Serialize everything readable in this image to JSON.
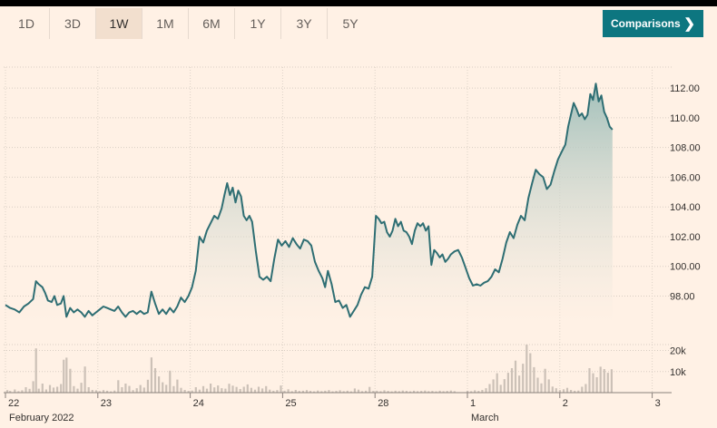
{
  "toolbar": {
    "ranges": [
      "1D",
      "3D",
      "1W",
      "1M",
      "6M",
      "1Y",
      "3Y",
      "5Y"
    ],
    "active_range": "1W",
    "comparisons_label": "Comparisons",
    "comparisons_icon": "chevron-right-icon"
  },
  "colors": {
    "background": "#fff1e5",
    "line": "#2e6e73",
    "area_top": "#9dbdb8",
    "volume": "#ccc1b7",
    "button": "#0d7680"
  },
  "chart_data": {
    "type": "area",
    "price": {
      "y_ticks": [
        "98.00",
        "100.00",
        "102.00",
        "104.00",
        "106.00",
        "108.00",
        "110.00",
        "112.00"
      ],
      "ylim": [
        96.2,
        112.8
      ],
      "points": [
        [
          0.0,
          97.4
        ],
        [
          0.05,
          97.2
        ],
        [
          0.1,
          97.1
        ],
        [
          0.15,
          96.9
        ],
        [
          0.2,
          97.3
        ],
        [
          0.25,
          97.5
        ],
        [
          0.3,
          97.8
        ],
        [
          0.33,
          99.0
        ],
        [
          0.36,
          98.8
        ],
        [
          0.4,
          98.6
        ],
        [
          0.43,
          98.2
        ],
        [
          0.46,
          97.7
        ],
        [
          0.5,
          97.6
        ],
        [
          0.53,
          98.0
        ],
        [
          0.56,
          97.4
        ],
        [
          0.6,
          97.5
        ],
        [
          0.63,
          98.0
        ],
        [
          0.66,
          96.6
        ],
        [
          0.7,
          97.2
        ],
        [
          0.74,
          96.9
        ],
        [
          0.78,
          97.1
        ],
        [
          0.82,
          96.9
        ],
        [
          0.86,
          96.6
        ],
        [
          0.9,
          97.0
        ],
        [
          0.94,
          96.7
        ],
        [
          0.98,
          96.9
        ],
        [
          1.02,
          97.1
        ],
        [
          1.06,
          97.3
        ],
        [
          1.1,
          97.2
        ],
        [
          1.14,
          97.1
        ],
        [
          1.18,
          97.0
        ],
        [
          1.22,
          97.3
        ],
        [
          1.26,
          96.9
        ],
        [
          1.3,
          96.6
        ],
        [
          1.34,
          96.9
        ],
        [
          1.38,
          97.0
        ],
        [
          1.42,
          96.8
        ],
        [
          1.46,
          97.0
        ],
        [
          1.5,
          96.8
        ],
        [
          1.54,
          96.9
        ],
        [
          1.58,
          98.3
        ],
        [
          1.62,
          97.5
        ],
        [
          1.66,
          96.8
        ],
        [
          1.7,
          97.1
        ],
        [
          1.74,
          96.8
        ],
        [
          1.78,
          97.2
        ],
        [
          1.82,
          96.9
        ],
        [
          1.86,
          97.3
        ],
        [
          1.9,
          97.9
        ],
        [
          1.94,
          97.6
        ],
        [
          1.98,
          98.0
        ],
        [
          2.02,
          98.6
        ],
        [
          2.06,
          99.7
        ],
        [
          2.1,
          102.0
        ],
        [
          2.14,
          101.6
        ],
        [
          2.18,
          102.4
        ],
        [
          2.22,
          102.9
        ],
        [
          2.26,
          103.4
        ],
        [
          2.3,
          103.2
        ],
        [
          2.34,
          103.9
        ],
        [
          2.37,
          104.8
        ],
        [
          2.4,
          105.6
        ],
        [
          2.43,
          104.8
        ],
        [
          2.46,
          105.3
        ],
        [
          2.49,
          104.3
        ],
        [
          2.52,
          105.1
        ],
        [
          2.55,
          104.7
        ],
        [
          2.58,
          103.4
        ],
        [
          2.61,
          103.1
        ],
        [
          2.64,
          103.4
        ],
        [
          2.67,
          103.0
        ],
        [
          2.71,
          101.0
        ],
        [
          2.75,
          99.3
        ],
        [
          2.79,
          99.1
        ],
        [
          2.83,
          99.3
        ],
        [
          2.87,
          99.0
        ],
        [
          2.91,
          100.5
        ],
        [
          2.95,
          101.8
        ],
        [
          2.99,
          101.4
        ],
        [
          3.03,
          101.7
        ],
        [
          3.07,
          101.3
        ],
        [
          3.11,
          101.9
        ],
        [
          3.15,
          101.5
        ],
        [
          3.19,
          101.2
        ],
        [
          3.23,
          101.8
        ],
        [
          3.27,
          101.7
        ],
        [
          3.31,
          101.4
        ],
        [
          3.35,
          100.3
        ],
        [
          3.39,
          99.7
        ],
        [
          3.43,
          99.2
        ],
        [
          3.46,
          98.6
        ],
        [
          3.49,
          99.7
        ],
        [
          3.53,
          98.8
        ],
        [
          3.57,
          97.6
        ],
        [
          3.61,
          97.7
        ],
        [
          3.65,
          97.2
        ],
        [
          3.69,
          97.4
        ],
        [
          3.73,
          96.6
        ],
        [
          3.77,
          97.0
        ],
        [
          3.81,
          97.4
        ],
        [
          3.85,
          98.1
        ],
        [
          3.89,
          98.6
        ],
        [
          3.93,
          98.5
        ],
        [
          3.97,
          99.3
        ],
        [
          4.01,
          103.4
        ],
        [
          4.04,
          103.2
        ],
        [
          4.07,
          102.9
        ],
        [
          4.1,
          103.0
        ],
        [
          4.13,
          102.3
        ],
        [
          4.16,
          102.0
        ],
        [
          4.19,
          102.4
        ],
        [
          4.22,
          103.2
        ],
        [
          4.25,
          102.7
        ],
        [
          4.28,
          103.0
        ],
        [
          4.31,
          102.4
        ],
        [
          4.34,
          102.3
        ],
        [
          4.37,
          102.0
        ],
        [
          4.4,
          101.5
        ],
        [
          4.43,
          102.4
        ],
        [
          4.46,
          102.9
        ],
        [
          4.49,
          102.7
        ],
        [
          4.52,
          102.9
        ],
        [
          4.55,
          102.4
        ],
        [
          4.58,
          102.7
        ],
        [
          4.61,
          100.1
        ],
        [
          4.64,
          101.1
        ],
        [
          4.67,
          100.9
        ],
        [
          4.7,
          100.6
        ],
        [
          4.73,
          100.8
        ],
        [
          4.76,
          100.3
        ],
        [
          4.79,
          100.5
        ],
        [
          4.82,
          100.8
        ],
        [
          4.86,
          101.0
        ],
        [
          4.9,
          101.1
        ],
        [
          4.94,
          100.6
        ],
        [
          4.98,
          99.9
        ],
        [
          5.02,
          99.2
        ],
        [
          5.06,
          98.7
        ],
        [
          5.1,
          98.8
        ],
        [
          5.14,
          98.7
        ],
        [
          5.18,
          98.9
        ],
        [
          5.22,
          99.0
        ],
        [
          5.26,
          99.3
        ],
        [
          5.3,
          99.8
        ],
        [
          5.34,
          99.6
        ],
        [
          5.38,
          100.5
        ],
        [
          5.42,
          101.6
        ],
        [
          5.46,
          102.3
        ],
        [
          5.5,
          101.9
        ],
        [
          5.54,
          102.8
        ],
        [
          5.58,
          103.4
        ],
        [
          5.62,
          103.1
        ],
        [
          5.66,
          104.6
        ],
        [
          5.7,
          105.6
        ],
        [
          5.74,
          106.5
        ],
        [
          5.78,
          106.2
        ],
        [
          5.82,
          106.0
        ],
        [
          5.86,
          105.2
        ],
        [
          5.9,
          105.5
        ],
        [
          5.94,
          106.4
        ],
        [
          5.98,
          107.2
        ],
        [
          6.02,
          107.7
        ],
        [
          6.06,
          108.2
        ],
        [
          6.09,
          109.4
        ],
        [
          6.12,
          110.2
        ],
        [
          6.15,
          111.0
        ],
        [
          6.18,
          110.6
        ],
        [
          6.21,
          110.1
        ],
        [
          6.24,
          110.3
        ],
        [
          6.27,
          109.9
        ],
        [
          6.3,
          110.2
        ],
        [
          6.33,
          111.6
        ],
        [
          6.36,
          111.2
        ],
        [
          6.39,
          112.3
        ],
        [
          6.42,
          111.1
        ],
        [
          6.45,
          111.5
        ],
        [
          6.48,
          110.4
        ],
        [
          6.51,
          110.0
        ],
        [
          6.54,
          109.4
        ],
        [
          6.57,
          109.2
        ]
      ]
    },
    "volume": {
      "y_ticks": [
        "10k",
        "20k"
      ],
      "ylim": [
        0,
        25000
      ],
      "bars": [
        [
          0.02,
          1200
        ],
        [
          0.05,
          800
        ],
        [
          0.1,
          1500
        ],
        [
          0.14,
          700
        ],
        [
          0.18,
          1100
        ],
        [
          0.22,
          2600
        ],
        [
          0.26,
          1800
        ],
        [
          0.3,
          5400
        ],
        [
          0.33,
          21000
        ],
        [
          0.36,
          1900
        ],
        [
          0.4,
          4300
        ],
        [
          0.44,
          1500
        ],
        [
          0.48,
          3600
        ],
        [
          0.52,
          2400
        ],
        [
          0.56,
          2800
        ],
        [
          0.6,
          4100
        ],
        [
          0.63,
          15600
        ],
        [
          0.66,
          16600
        ],
        [
          0.7,
          11300
        ],
        [
          0.74,
          3100
        ],
        [
          0.78,
          1900
        ],
        [
          0.82,
          4700
        ],
        [
          0.86,
          12400
        ],
        [
          0.9,
          2600
        ],
        [
          0.94,
          1300
        ],
        [
          0.98,
          1100
        ],
        [
          1.02,
          700
        ],
        [
          1.06,
          1200
        ],
        [
          1.1,
          900
        ],
        [
          1.14,
          600
        ],
        [
          1.18,
          1000
        ],
        [
          1.22,
          5900
        ],
        [
          1.26,
          2600
        ],
        [
          1.3,
          4300
        ],
        [
          1.34,
          3200
        ],
        [
          1.38,
          1200
        ],
        [
          1.42,
          2100
        ],
        [
          1.46,
          3600
        ],
        [
          1.5,
          2400
        ],
        [
          1.54,
          6100
        ],
        [
          1.58,
          16700
        ],
        [
          1.62,
          11600
        ],
        [
          1.66,
          7700
        ],
        [
          1.7,
          4900
        ],
        [
          1.74,
          3700
        ],
        [
          1.78,
          10400
        ],
        [
          1.82,
          3100
        ],
        [
          1.86,
          6200
        ],
        [
          1.9,
          2300
        ],
        [
          1.94,
          1300
        ],
        [
          1.98,
          800
        ],
        [
          2.02,
          1000
        ],
        [
          2.06,
          2600
        ],
        [
          2.1,
          1400
        ],
        [
          2.14,
          3100
        ],
        [
          2.18,
          1900
        ],
        [
          2.22,
          4300
        ],
        [
          2.26,
          2500
        ],
        [
          2.3,
          3400
        ],
        [
          2.34,
          2100
        ],
        [
          2.38,
          1900
        ],
        [
          2.42,
          4200
        ],
        [
          2.46,
          3300
        ],
        [
          2.5,
          2700
        ],
        [
          2.54,
          1700
        ],
        [
          2.58,
          2800
        ],
        [
          2.62,
          3900
        ],
        [
          2.66,
          2300
        ],
        [
          2.7,
          1400
        ],
        [
          2.74,
          2800
        ],
        [
          2.78,
          2000
        ],
        [
          2.82,
          3100
        ],
        [
          2.86,
          1400
        ],
        [
          2.9,
          900
        ],
        [
          2.94,
          1200
        ],
        [
          2.98,
          3400
        ],
        [
          3.02,
          900
        ],
        [
          3.06,
          1600
        ],
        [
          3.1,
          700
        ],
        [
          3.14,
          1300
        ],
        [
          3.18,
          800
        ],
        [
          3.22,
          900
        ],
        [
          3.26,
          1200
        ],
        [
          3.3,
          800
        ],
        [
          3.34,
          600
        ],
        [
          3.38,
          1000
        ],
        [
          3.42,
          700
        ],
        [
          3.46,
          900
        ],
        [
          3.5,
          1200
        ],
        [
          3.54,
          600
        ],
        [
          3.58,
          800
        ],
        [
          3.62,
          1100
        ],
        [
          3.66,
          700
        ],
        [
          3.7,
          900
        ],
        [
          3.74,
          600
        ],
        [
          3.78,
          2000
        ],
        [
          3.82,
          1400
        ],
        [
          3.86,
          700
        ],
        [
          3.9,
          900
        ],
        [
          3.94,
          2700
        ],
        [
          3.98,
          800
        ],
        [
          4.02,
          900
        ],
        [
          4.06,
          700
        ],
        [
          4.1,
          1100
        ],
        [
          4.14,
          800
        ],
        [
          4.18,
          600
        ],
        [
          4.22,
          900
        ],
        [
          4.26,
          700
        ],
        [
          4.3,
          1000
        ],
        [
          4.34,
          800
        ],
        [
          4.38,
          600
        ],
        [
          4.42,
          900
        ],
        [
          4.46,
          700
        ],
        [
          4.5,
          800
        ],
        [
          4.54,
          1000
        ],
        [
          4.58,
          700
        ],
        [
          4.62,
          800
        ],
        [
          4.66,
          600
        ],
        [
          4.7,
          900
        ],
        [
          4.74,
          700
        ],
        [
          4.78,
          800
        ],
        [
          4.82,
          1000
        ],
        [
          4.86,
          700
        ],
        [
          5.0,
          900
        ],
        [
          5.04,
          700
        ],
        [
          5.08,
          1100
        ],
        [
          5.12,
          800
        ],
        [
          5.16,
          1300
        ],
        [
          5.2,
          2100
        ],
        [
          5.24,
          4100
        ],
        [
          5.28,
          6300
        ],
        [
          5.32,
          9200
        ],
        [
          5.36,
          3700
        ],
        [
          5.4,
          6400
        ],
        [
          5.44,
          9400
        ],
        [
          5.48,
          11600
        ],
        [
          5.52,
          15200
        ],
        [
          5.56,
          8100
        ],
        [
          5.6,
          13700
        ],
        [
          5.64,
          22800
        ],
        [
          5.68,
          18700
        ],
        [
          5.72,
          12100
        ],
        [
          5.76,
          7100
        ],
        [
          5.8,
          4400
        ],
        [
          5.84,
          11300
        ],
        [
          5.88,
          6300
        ],
        [
          5.92,
          2900
        ],
        [
          5.96,
          2100
        ],
        [
          6.0,
          1200
        ],
        [
          6.04,
          1600
        ],
        [
          6.08,
          2300
        ],
        [
          6.12,
          1300
        ],
        [
          6.16,
          900
        ],
        [
          6.2,
          1000
        ],
        [
          6.24,
          2800
        ],
        [
          6.28,
          4100
        ],
        [
          6.32,
          11600
        ],
        [
          6.36,
          9200
        ],
        [
          6.4,
          7300
        ],
        [
          6.44,
          12300
        ],
        [
          6.48,
          11200
        ],
        [
          6.52,
          9400
        ],
        [
          6.56,
          11100
        ]
      ]
    },
    "x_axis": {
      "ticks": [
        "22",
        "23",
        "24",
        "25",
        "28",
        "1",
        "2",
        "3"
      ],
      "month_labels": [
        {
          "text": "February 2022",
          "at": 0
        },
        {
          "text": "March",
          "at": 5
        }
      ]
    },
    "grid": true,
    "legend": "none"
  }
}
